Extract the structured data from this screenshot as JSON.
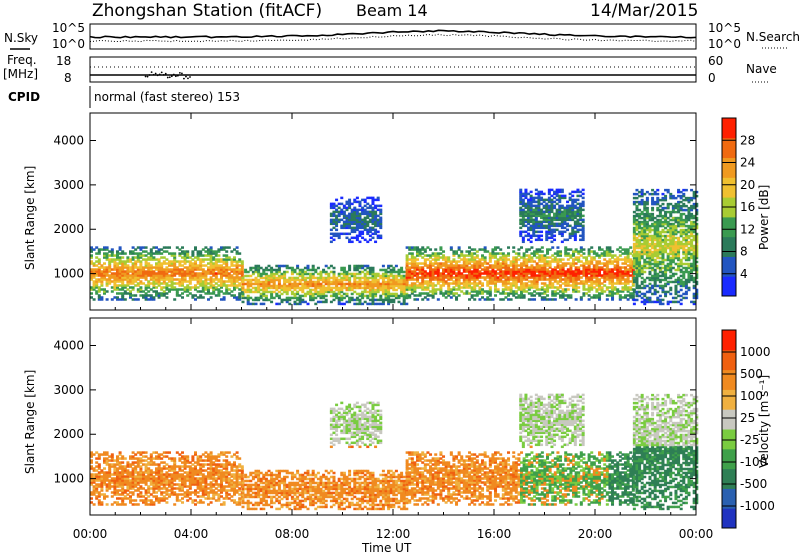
{
  "header": {
    "title": "Zhongshan Station (fitACF)",
    "beam": "Beam 14",
    "date": "14/Mar/2015"
  },
  "noise_panel": {
    "left_label": "N.Sky",
    "right_label": "N.Search",
    "left_ticks": [
      "10^5",
      "10^0"
    ],
    "right_ticks": [
      "10^5",
      "10^0"
    ]
  },
  "freq_panel": {
    "left_label_line1": "Freq.",
    "left_label_line2": "[MHz]",
    "right_label": "Nave",
    "left_ticks": [
      "18",
      "8"
    ],
    "right_ticks": [
      "60",
      "0"
    ]
  },
  "cpid_panel": {
    "label": "CPID",
    "text": "normal (fast stereo) 153"
  },
  "x_axis": {
    "label": "Time UT",
    "ticks": [
      "00:00",
      "04:00",
      "08:00",
      "12:00",
      "16:00",
      "20:00",
      "00:00"
    ]
  },
  "power_panel": {
    "ylabel": "Slant Range [km]",
    "yticks": [
      "4000",
      "3000",
      "2000",
      "1000"
    ],
    "colorbar_label": "Power [dB]",
    "colorbar_ticks": [
      "28",
      "24",
      "20",
      "16",
      "12",
      "8",
      "4"
    ],
    "colors": [
      "#1a2bff",
      "#2255c0",
      "#2b7a5a",
      "#3a9a50",
      "#a8cc33",
      "#f0c030",
      "#f09a20",
      "#f06a10",
      "#ff2000"
    ]
  },
  "velocity_panel": {
    "ylabel": "Slant Range [km]",
    "yticks": [
      "4000",
      "3000",
      "2000",
      "1000"
    ],
    "colorbar_label": "Velocity [m s⁻¹]",
    "colorbar_ticks": [
      "1000",
      "500",
      "100",
      "25",
      "-25",
      "-100",
      "-500",
      "-1000"
    ],
    "colors": [
      "#2033c0",
      "#2a60b0",
      "#2f7f55",
      "#3fa04a",
      "#7acc40",
      "#c8c8c0",
      "#f0b040",
      "#f08a20",
      "#f06010",
      "#ff2000"
    ]
  },
  "chart_data": {
    "type": "heatmap",
    "title": "Zhongshan Station (fitACF)",
    "xlabel": "Time UT",
    "ylabel": "Slant Range [km]",
    "xlim": [
      "00:00",
      "24:00"
    ],
    "ylim": [
      180,
      4620
    ],
    "power_colorbar": {
      "label": "Power [dB]",
      "ticks": [
        4,
        8,
        12,
        16,
        20,
        24,
        28
      ],
      "range": [
        0,
        32
      ]
    },
    "velocity_colorbar": {
      "label": "Velocity [m s-1]",
      "ticks": [
        -1000,
        -500,
        -100,
        -25,
        25,
        100,
        500,
        1000
      ]
    },
    "scatter_bands_approx": [
      {
        "start_h": 0.0,
        "end_h": 6.0,
        "range_min_km": 400,
        "range_max_km": 1600,
        "peak_power_db": 26
      },
      {
        "start_h": 6.0,
        "end_h": 12.5,
        "range_min_km": 300,
        "range_max_km": 1200,
        "peak_power_db": 24
      },
      {
        "start_h": 9.5,
        "end_h": 11.5,
        "range_min_km": 1700,
        "range_max_km": 2700,
        "peak_power_db": 8
      },
      {
        "start_h": 12.5,
        "end_h": 21.5,
        "range_min_km": 400,
        "range_max_km": 1600,
        "peak_power_db": 30
      },
      {
        "start_h": 17.0,
        "end_h": 19.5,
        "range_min_km": 1700,
        "range_max_km": 2900,
        "peak_power_db": 10
      },
      {
        "start_h": 21.5,
        "end_h": 24.0,
        "range_min_km": 300,
        "range_max_km": 2900,
        "peak_power_db": 18
      }
    ]
  }
}
